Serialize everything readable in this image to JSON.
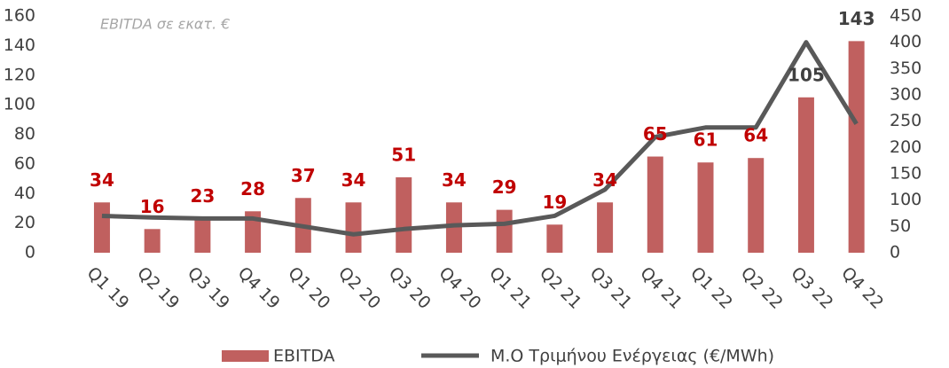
{
  "chart_data": {
    "type": "bar-line",
    "annotation": "EBITDA σε εκατ. €",
    "categories": [
      "Q1 19",
      "Q2 19",
      "Q3 19",
      "Q4 19",
      "Q1 20",
      "Q2 20",
      "Q3 20",
      "Q4 20",
      "Q1 21",
      "Q2 21",
      "Q3 21",
      "Q4 21",
      "Q1 22",
      "Q2 22",
      "Q3 22",
      "Q4 22"
    ],
    "series": [
      {
        "name": "EBITDA",
        "type": "bar",
        "color": "#c0605f",
        "values": [
          34,
          16,
          23,
          28,
          37,
          34,
          51,
          34,
          29,
          19,
          34,
          65,
          61,
          64,
          105,
          143
        ],
        "label_colors": [
          "#c00000",
          "#c00000",
          "#c00000",
          "#c00000",
          "#c00000",
          "#c00000",
          "#c00000",
          "#c00000",
          "#c00000",
          "#c00000",
          "#c00000",
          "#c00000",
          "#c00000",
          "#c00000",
          "#404040",
          "#404040"
        ]
      },
      {
        "name": "Μ.Ο Τριμήνου Ενέργειας (€/MWh)",
        "type": "line",
        "axis": "y2",
        "color": "#595959",
        "values": [
          70,
          67,
          65,
          65,
          50,
          35,
          45,
          52,
          55,
          70,
          120,
          220,
          238,
          238,
          400,
          245
        ]
      }
    ],
    "ylim": [
      0,
      160
    ],
    "yticks": [
      0,
      20,
      40,
      60,
      80,
      100,
      120,
      140,
      160
    ],
    "y2lim": [
      0,
      450
    ],
    "y2ticks": [
      0,
      50,
      100,
      150,
      200,
      250,
      300,
      350,
      400,
      450
    ],
    "legend": "bottom"
  }
}
